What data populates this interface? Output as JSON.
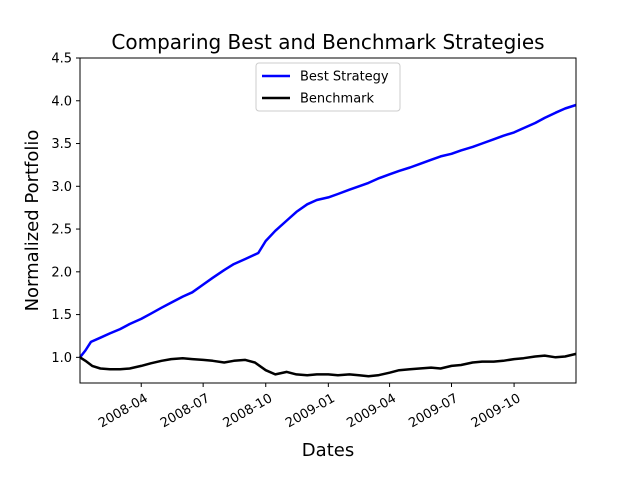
{
  "chart_data": {
    "type": "line",
    "title": "Comparing Best and Benchmark Strategies",
    "xlabel": "Dates",
    "ylabel": "Normalized Portfolio",
    "xlim": [
      "2008-01-02",
      "2009-12-31"
    ],
    "ylim": [
      0.7,
      4.5
    ],
    "grid": false,
    "legend_position": "top-center",
    "x_ticks": [
      "2008-04",
      "2008-07",
      "2008-10",
      "2009-01",
      "2009-04",
      "2009-07",
      "2009-10"
    ],
    "y_ticks": [
      "1.0",
      "1.5",
      "2.0",
      "2.5",
      "3.0",
      "3.5",
      "4.0",
      "4.5"
    ],
    "series": [
      {
        "name": "Best Strategy",
        "color": "#0000ff",
        "points": [
          [
            "2008-01-02",
            1.0
          ],
          [
            "2008-01-10",
            1.08
          ],
          [
            "2008-01-18",
            1.18
          ],
          [
            "2008-02-01",
            1.23
          ],
          [
            "2008-02-15",
            1.28
          ],
          [
            "2008-03-01",
            1.33
          ],
          [
            "2008-03-15",
            1.39
          ],
          [
            "2008-04-01",
            1.45
          ],
          [
            "2008-04-15",
            1.51
          ],
          [
            "2008-05-01",
            1.58
          ],
          [
            "2008-05-15",
            1.64
          ],
          [
            "2008-06-01",
            1.71
          ],
          [
            "2008-06-15",
            1.76
          ],
          [
            "2008-07-01",
            1.85
          ],
          [
            "2008-07-15",
            1.93
          ],
          [
            "2008-08-01",
            2.02
          ],
          [
            "2008-08-15",
            2.09
          ],
          [
            "2008-09-01",
            2.15
          ],
          [
            "2008-09-20",
            2.22
          ],
          [
            "2008-10-01",
            2.36
          ],
          [
            "2008-10-15",
            2.48
          ],
          [
            "2008-11-01",
            2.6
          ],
          [
            "2008-11-15",
            2.7
          ],
          [
            "2008-12-01",
            2.79
          ],
          [
            "2008-12-15",
            2.84
          ],
          [
            "2009-01-01",
            2.87
          ],
          [
            "2009-01-15",
            2.91
          ],
          [
            "2009-02-01",
            2.96
          ],
          [
            "2009-02-15",
            3.0
          ],
          [
            "2009-03-01",
            3.04
          ],
          [
            "2009-03-15",
            3.09
          ],
          [
            "2009-04-01",
            3.14
          ],
          [
            "2009-04-15",
            3.18
          ],
          [
            "2009-05-01",
            3.22
          ],
          [
            "2009-05-15",
            3.26
          ],
          [
            "2009-06-01",
            3.31
          ],
          [
            "2009-06-15",
            3.35
          ],
          [
            "2009-07-01",
            3.38
          ],
          [
            "2009-07-15",
            3.42
          ],
          [
            "2009-08-01",
            3.46
          ],
          [
            "2009-08-15",
            3.5
          ],
          [
            "2009-09-01",
            3.55
          ],
          [
            "2009-09-15",
            3.59
          ],
          [
            "2009-10-01",
            3.63
          ],
          [
            "2009-10-15",
            3.68
          ],
          [
            "2009-11-01",
            3.74
          ],
          [
            "2009-11-15",
            3.8
          ],
          [
            "2009-12-01",
            3.86
          ],
          [
            "2009-12-15",
            3.91
          ],
          [
            "2009-12-31",
            3.95
          ]
        ]
      },
      {
        "name": "Benchmark",
        "color": "#000000",
        "points": [
          [
            "2008-01-02",
            1.0
          ],
          [
            "2008-01-10",
            0.96
          ],
          [
            "2008-01-20",
            0.9
          ],
          [
            "2008-02-01",
            0.87
          ],
          [
            "2008-02-15",
            0.86
          ],
          [
            "2008-03-01",
            0.86
          ],
          [
            "2008-03-15",
            0.87
          ],
          [
            "2008-04-01",
            0.9
          ],
          [
            "2008-04-15",
            0.93
          ],
          [
            "2008-05-01",
            0.96
          ],
          [
            "2008-05-15",
            0.98
          ],
          [
            "2008-06-01",
            0.99
          ],
          [
            "2008-06-15",
            0.98
          ],
          [
            "2008-07-01",
            0.97
          ],
          [
            "2008-07-15",
            0.96
          ],
          [
            "2008-08-01",
            0.94
          ],
          [
            "2008-08-15",
            0.96
          ],
          [
            "2008-09-01",
            0.97
          ],
          [
            "2008-09-15",
            0.94
          ],
          [
            "2008-10-01",
            0.85
          ],
          [
            "2008-10-15",
            0.8
          ],
          [
            "2008-11-01",
            0.83
          ],
          [
            "2008-11-15",
            0.8
          ],
          [
            "2008-12-01",
            0.79
          ],
          [
            "2008-12-15",
            0.8
          ],
          [
            "2009-01-01",
            0.8
          ],
          [
            "2009-01-15",
            0.79
          ],
          [
            "2009-02-01",
            0.8
          ],
          [
            "2009-02-15",
            0.79
          ],
          [
            "2009-03-01",
            0.78
          ],
          [
            "2009-03-15",
            0.79
          ],
          [
            "2009-04-01",
            0.82
          ],
          [
            "2009-04-15",
            0.85
          ],
          [
            "2009-05-01",
            0.86
          ],
          [
            "2009-05-15",
            0.87
          ],
          [
            "2009-06-01",
            0.88
          ],
          [
            "2009-06-15",
            0.87
          ],
          [
            "2009-07-01",
            0.9
          ],
          [
            "2009-07-15",
            0.91
          ],
          [
            "2009-08-01",
            0.94
          ],
          [
            "2009-08-15",
            0.95
          ],
          [
            "2009-09-01",
            0.95
          ],
          [
            "2009-09-15",
            0.96
          ],
          [
            "2009-10-01",
            0.98
          ],
          [
            "2009-10-15",
            0.99
          ],
          [
            "2009-11-01",
            1.01
          ],
          [
            "2009-11-15",
            1.02
          ],
          [
            "2009-12-01",
            1.0
          ],
          [
            "2009-12-15",
            1.01
          ],
          [
            "2009-12-31",
            1.04
          ]
        ]
      }
    ]
  }
}
